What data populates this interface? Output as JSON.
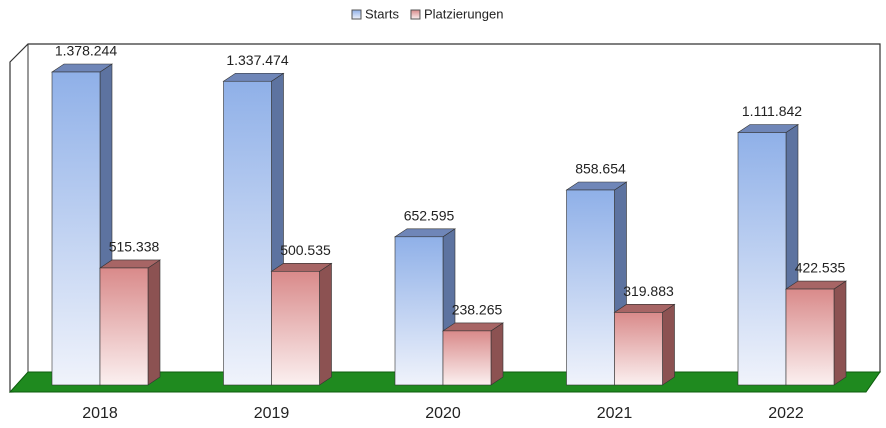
{
  "chart_data": {
    "type": "bar3d",
    "categories": [
      "2018",
      "2019",
      "2020",
      "2021",
      "2022"
    ],
    "series": [
      {
        "name": "Starts",
        "color": "#8fb0e8",
        "values": [
          1378244,
          1337474,
          652595,
          858654,
          1111842
        ],
        "value_labels": [
          "1.378.244",
          "1.337.474",
          "652.595",
          "858.654",
          "1.111.842"
        ]
      },
      {
        "name": "Platzierungen",
        "color": "#d98a8a",
        "values": [
          515338,
          500535,
          238265,
          319883,
          422535
        ],
        "value_labels": [
          "515.338",
          "500.535",
          "238.265",
          "319.883",
          "422.535"
        ]
      }
    ]
  }
}
